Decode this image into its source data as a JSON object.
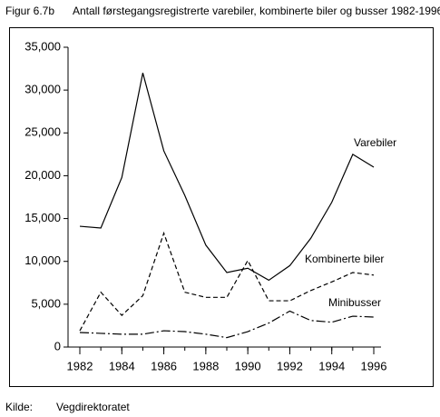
{
  "chart_data": {
    "type": "line",
    "figure_label": "Figur 6.7b",
    "title": "Antall førstegangsregistrerte varebiler, kombinerte biler og busser 1982-1996",
    "x": [
      1982,
      1983,
      1984,
      1985,
      1986,
      1987,
      1988,
      1989,
      1990,
      1991,
      1992,
      1993,
      1994,
      1995,
      1996
    ],
    "series": [
      {
        "name": "Varebiler",
        "color": "#000000",
        "dash": "solid",
        "values": [
          14100,
          13900,
          19800,
          32000,
          22900,
          17700,
          11900,
          8700,
          9200,
          7800,
          9500,
          12700,
          16900,
          22500,
          21000
        ]
      },
      {
        "name": "Kombinerte biler",
        "color": "#000000",
        "dash": "dashed",
        "values": [
          1900,
          6400,
          3700,
          6000,
          13300,
          6400,
          5800,
          5800,
          10100,
          5400,
          5400,
          6600,
          7600,
          8700,
          8400
        ]
      },
      {
        "name": "Minibusser",
        "color": "#000000",
        "dash": "dashdot",
        "values": [
          1700,
          1600,
          1500,
          1500,
          1900,
          1800,
          1500,
          1100,
          1800,
          2800,
          4200,
          3100,
          2900,
          3600,
          3500
        ]
      }
    ],
    "xlim": [
      1982,
      1996
    ],
    "xticks": [
      1982,
      1984,
      1986,
      1988,
      1990,
      1992,
      1994,
      1996
    ],
    "ylim": [
      0,
      35000
    ],
    "yticks": [
      0,
      {
        "value": 5000,
        "label": "5,000"
      },
      {
        "value": 10000,
        "label": "10,000"
      },
      {
        "value": 15000,
        "label": "15,000"
      },
      {
        "value": 20000,
        "label": "20,000"
      },
      {
        "value": 25000,
        "label": "25,000"
      },
      {
        "value": 30000,
        "label": "30,000"
      },
      {
        "value": 35000,
        "label": "35,000"
      }
    ],
    "grid": false,
    "source_label": "Kilde:",
    "source": "Vegdirektoratet"
  }
}
